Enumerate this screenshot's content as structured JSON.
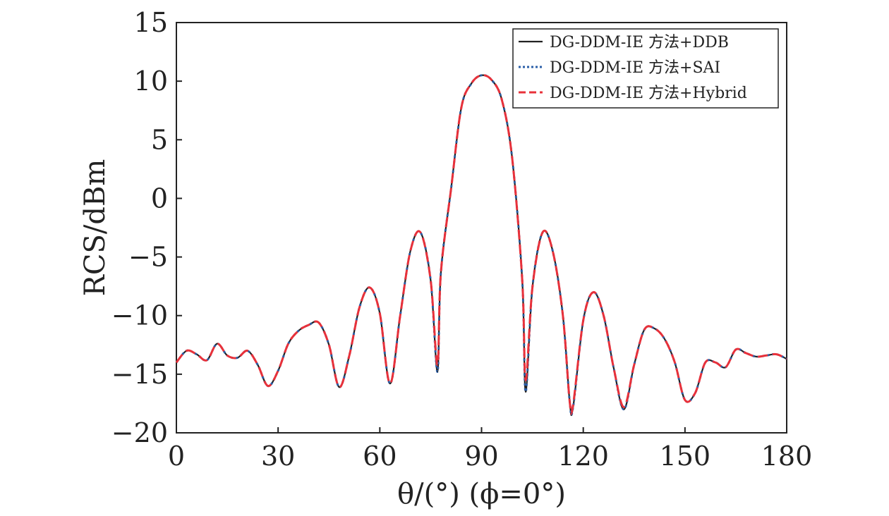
{
  "chart_data": {
    "type": "line",
    "xlabel": "θ/(°) (ϕ=0°)",
    "ylabel": "RCS/dBm",
    "xlim": [
      0,
      180
    ],
    "ylim": [
      -20,
      15
    ],
    "xticks": [
      0,
      30,
      60,
      90,
      120,
      150,
      180
    ],
    "yticks": [
      15,
      10,
      5,
      0,
      -5,
      -10,
      -15,
      -20
    ],
    "ytick_labels": [
      "15",
      "10",
      "5",
      "0",
      "−5",
      "−10",
      "−15",
      "−20"
    ],
    "grid": false,
    "legend_position": "top-right",
    "x": [
      0,
      3,
      6,
      9,
      12,
      15,
      18,
      21,
      24,
      27,
      30,
      33,
      36,
      39,
      42,
      45,
      48,
      51,
      54,
      57,
      60,
      63,
      66,
      69,
      72,
      75,
      77,
      78,
      81,
      84,
      87,
      90,
      93,
      96,
      99,
      102,
      103,
      105,
      108,
      111,
      114,
      116,
      117,
      120,
      123,
      126,
      129,
      132,
      135,
      138,
      141,
      144,
      147,
      150,
      153,
      156,
      159,
      162,
      165,
      168,
      171,
      174,
      177,
      180
    ],
    "series": [
      {
        "name": "DG-DDM-IE 方法+DDB",
        "color": "#222222",
        "style": "solid",
        "values": [
          -14.0,
          -13.0,
          -13.3,
          -13.8,
          -12.4,
          -13.4,
          -13.6,
          -13.0,
          -14.2,
          -16.0,
          -14.7,
          -12.4,
          -11.3,
          -10.8,
          -10.6,
          -12.5,
          -16.1,
          -13.4,
          -9.3,
          -7.6,
          -9.8,
          -15.8,
          -10.0,
          -4.5,
          -2.9,
          -7.0,
          -14.8,
          -6.4,
          0.8,
          7.7,
          9.8,
          10.5,
          10.1,
          8.4,
          3.5,
          -7.0,
          -16.5,
          -7.6,
          -2.9,
          -4.5,
          -10.0,
          -17.3,
          -17.8,
          -10.4,
          -8.0,
          -10.0,
          -14.5,
          -18.0,
          -14.2,
          -11.2,
          -11.1,
          -12.0,
          -14.0,
          -17.2,
          -16.6,
          -14.0,
          -14.0,
          -14.4,
          -12.9,
          -13.2,
          -13.5,
          -13.4,
          -13.3,
          -13.7
        ]
      },
      {
        "name": "DG-DDM-IE 方法+SAI",
        "color": "#2b5fa8",
        "style": "dotted",
        "values": [
          -14.0,
          -13.0,
          -13.3,
          -13.8,
          -12.4,
          -13.4,
          -13.6,
          -13.0,
          -14.2,
          -16.0,
          -14.7,
          -12.4,
          -11.3,
          -10.8,
          -10.6,
          -12.5,
          -16.1,
          -13.4,
          -9.3,
          -7.6,
          -9.8,
          -15.8,
          -10.0,
          -4.5,
          -2.9,
          -7.0,
          -14.8,
          -6.4,
          0.8,
          7.7,
          9.8,
          10.5,
          10.1,
          8.4,
          3.5,
          -7.0,
          -16.5,
          -7.6,
          -2.9,
          -4.5,
          -10.0,
          -17.3,
          -17.8,
          -10.4,
          -8.0,
          -10.0,
          -14.5,
          -18.0,
          -14.2,
          -11.2,
          -11.1,
          -12.0,
          -14.0,
          -17.2,
          -16.6,
          -14.0,
          -14.0,
          -14.4,
          -12.9,
          -13.2,
          -13.5,
          -13.4,
          -13.3,
          -13.7
        ]
      },
      {
        "name": "DG-DDM-IE 方法+Hybrid",
        "color": "#e8313a",
        "style": "dashed",
        "values": [
          -14.0,
          -13.0,
          -13.3,
          -13.8,
          -12.4,
          -13.4,
          -13.6,
          -13.0,
          -14.2,
          -16.0,
          -14.7,
          -12.4,
          -11.3,
          -10.8,
          -10.6,
          -12.5,
          -16.1,
          -13.4,
          -9.3,
          -7.6,
          -9.8,
          -15.8,
          -10.0,
          -4.5,
          -2.9,
          -7.0,
          -14.2,
          -6.4,
          0.8,
          7.7,
          9.8,
          10.5,
          10.1,
          8.4,
          3.5,
          -7.0,
          -15.5,
          -7.6,
          -2.9,
          -4.5,
          -10.0,
          -17.3,
          -17.6,
          -10.4,
          -8.0,
          -10.0,
          -14.5,
          -17.8,
          -14.2,
          -11.2,
          -11.1,
          -12.0,
          -14.0,
          -17.2,
          -16.6,
          -14.0,
          -14.0,
          -14.4,
          -12.9,
          -13.2,
          -13.5,
          -13.4,
          -13.3,
          -13.7
        ]
      }
    ]
  }
}
